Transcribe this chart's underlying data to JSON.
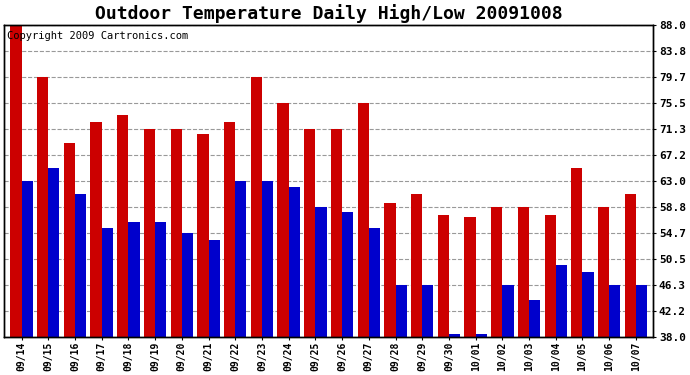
{
  "title": "Outdoor Temperature Daily High/Low 20091008",
  "copyright": "Copyright 2009 Cartronics.com",
  "dates": [
    "09/14",
    "09/15",
    "09/16",
    "09/17",
    "09/18",
    "09/19",
    "09/20",
    "09/21",
    "09/22",
    "09/23",
    "09/24",
    "09/25",
    "09/26",
    "09/27",
    "09/28",
    "09/29",
    "09/30",
    "10/01",
    "10/02",
    "10/03",
    "10/04",
    "10/05",
    "10/06",
    "10/07"
  ],
  "highs": [
    88.0,
    79.7,
    69.0,
    72.5,
    73.5,
    71.3,
    71.3,
    70.5,
    72.5,
    79.7,
    75.5,
    71.3,
    71.3,
    75.5,
    59.5,
    61.0,
    57.5,
    57.2,
    58.8,
    58.8,
    57.5,
    65.0,
    58.8,
    61.0
  ],
  "lows": [
    63.0,
    65.0,
    61.0,
    55.5,
    56.5,
    56.5,
    54.7,
    53.5,
    63.0,
    63.0,
    62.0,
    58.8,
    58.0,
    55.5,
    46.3,
    46.3,
    38.5,
    38.5,
    46.3,
    44.0,
    49.5,
    48.5,
    46.3,
    46.3
  ],
  "high_color": "#cc0000",
  "low_color": "#0000cc",
  "bg_color": "#ffffff",
  "grid_color": "#999999",
  "yticks": [
    38.0,
    42.2,
    46.3,
    50.5,
    54.7,
    58.8,
    63.0,
    67.2,
    71.3,
    75.5,
    79.7,
    83.8,
    88.0
  ],
  "ylim": [
    38.0,
    88.0
  ],
  "ybase": 38.0,
  "title_fontsize": 13,
  "copyright_fontsize": 7.5
}
